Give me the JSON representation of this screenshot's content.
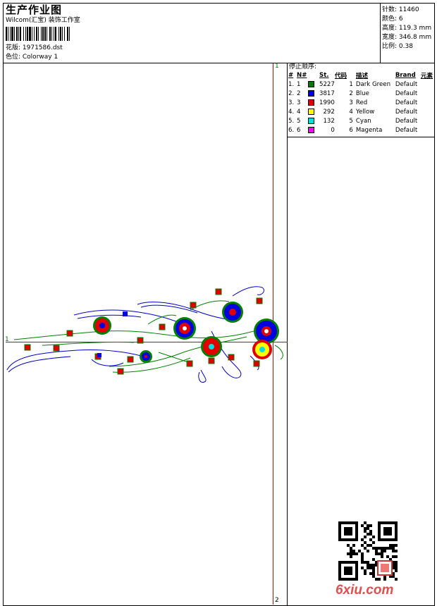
{
  "header": {
    "title": "生产作业图",
    "company": "Wilcom(汇宝) 装饰工作室",
    "design_label": "花版: 1971586.dst",
    "colorway_label": "色位:  Colorway 1"
  },
  "stats": [
    {
      "label": "针数:",
      "value": "11460"
    },
    {
      "label": "颜色:",
      "value": "6"
    },
    {
      "label": "高度:",
      "value": "119.3 mm"
    },
    {
      "label": "宽度:",
      "value": "346.8 mm"
    },
    {
      "label": "比例:",
      "value": "0.38"
    }
  ],
  "stop_sequence": {
    "title": "停止顺序:",
    "columns": [
      "#",
      "N#",
      "St.",
      "代码",
      "描述",
      "Brand",
      "元素"
    ],
    "rows": [
      {
        "idx": "1.",
        "n": "1",
        "color": "#007a00",
        "st": "5227",
        "code": "1",
        "desc": "Dark Green",
        "brand": "Default"
      },
      {
        "idx": "2.",
        "n": "2",
        "color": "#0000e0",
        "st": "3817",
        "code": "2",
        "desc": "Blue",
        "brand": "Default"
      },
      {
        "idx": "3.",
        "n": "3",
        "color": "#e00000",
        "st": "1990",
        "code": "3",
        "desc": "Red",
        "brand": "Default"
      },
      {
        "idx": "4.",
        "n": "4",
        "color": "#ffff00",
        "st": "292",
        "code": "4",
        "desc": "Yellow",
        "brand": "Default"
      },
      {
        "idx": "5.",
        "n": "5",
        "color": "#00e0e0",
        "st": "132",
        "code": "5",
        "desc": "Cyan",
        "brand": "Default"
      },
      {
        "idx": "6.",
        "n": "6",
        "color": "#ff00ff",
        "st": "0",
        "code": "6",
        "desc": "Magenta",
        "brand": "Default"
      }
    ]
  },
  "guides": {
    "v_top": "1",
    "v_bottom": "2",
    "h_left": "1"
  },
  "watermark": {
    "logo": "6xiu.com"
  }
}
